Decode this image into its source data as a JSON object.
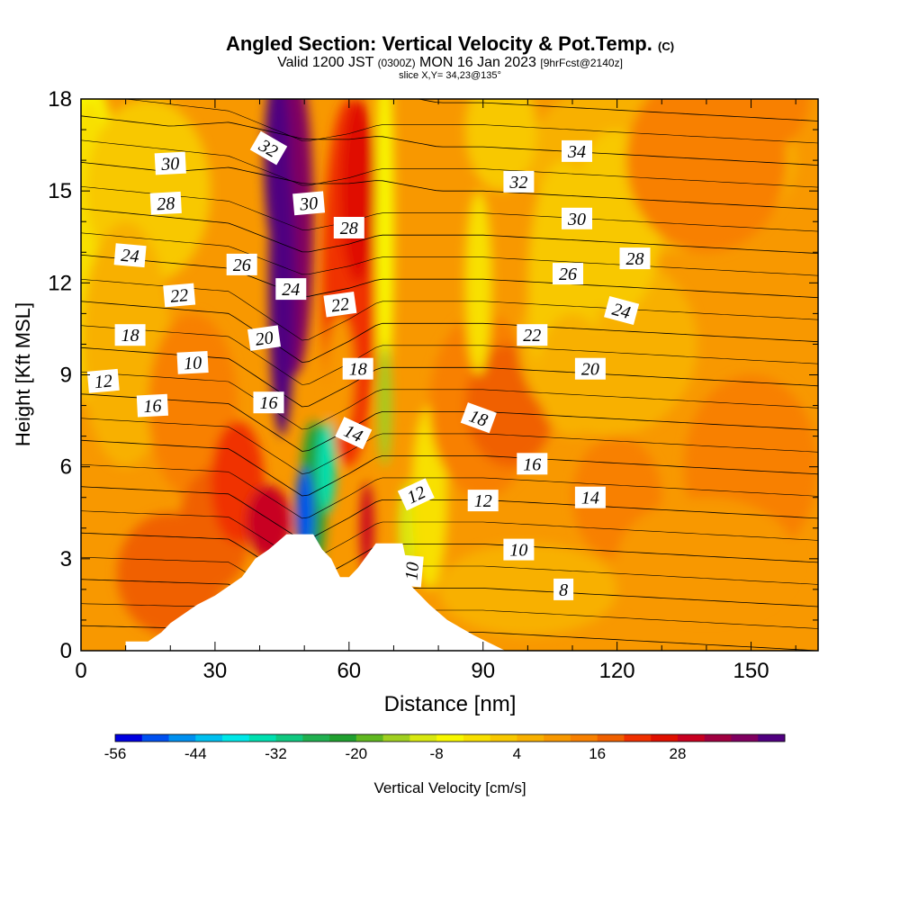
{
  "header": {
    "title": "Angled Section: Vertical Velocity & Pot.Temp.",
    "copyright": "(C)",
    "valid_prefix": "Valid 1200 JST",
    "valid_z": "(0300Z)",
    "valid_date": "MON 16 Jan 2023",
    "fcst": "[9hrFcst@2140z]",
    "slice": "slice X,Y= 34,23@135°"
  },
  "chart_data": {
    "type": "heatmap",
    "xlabel": "Distance [nm]",
    "ylabel": "Height [Kft MSL]",
    "xlim": [
      0,
      165
    ],
    "ylim": [
      0,
      18
    ],
    "x_ticks": [
      0,
      30,
      60,
      90,
      120,
      150
    ],
    "y_ticks": [
      0,
      3,
      6,
      9,
      12,
      15,
      18
    ],
    "colorbar": {
      "label": "Vertical Velocity [cm/s]",
      "tick_labels": [
        "-56",
        "-44",
        "-32",
        "-20",
        "-8",
        "4",
        "16",
        "28"
      ],
      "levels": [
        -60,
        -56,
        -52,
        -48,
        -44,
        -40,
        -36,
        -32,
        -28,
        -24,
        -20,
        -16,
        -12,
        -8,
        -4,
        0,
        4,
        8,
        12,
        16,
        20,
        24,
        28,
        32,
        36
      ],
      "colors": [
        "#0000e0",
        "#0050f0",
        "#0090f0",
        "#00c0f0",
        "#00e8e8",
        "#00e0b0",
        "#10c880",
        "#20b050",
        "#20a030",
        "#60b820",
        "#a0d020",
        "#d8e810",
        "#f8f800",
        "#f8e000",
        "#f8c800",
        "#f8b000",
        "#f89800",
        "#f88000",
        "#f06000",
        "#f03000",
        "#e01000",
        "#c80020",
        "#a00040",
        "#800060",
        "#500080"
      ]
    },
    "contour_labels": [
      "30",
      "28",
      "24",
      "22",
      "18",
      "12",
      "16",
      "10",
      "32",
      "30",
      "26",
      "24",
      "20",
      "16",
      "28",
      "22",
      "18",
      "14",
      "12",
      "10",
      "34",
      "32",
      "30",
      "28",
      "26",
      "24",
      "22",
      "20",
      "18",
      "16",
      "14",
      "12",
      "10",
      "8"
    ],
    "theta_levels": [
      6,
      8,
      10,
      12,
      14,
      16,
      18,
      20,
      22,
      24,
      26,
      28,
      30,
      32,
      34,
      36
    ],
    "terrain_kft": [
      [
        0,
        0
      ],
      [
        10,
        0
      ],
      [
        10,
        0.3
      ],
      [
        15,
        0.3
      ],
      [
        18,
        0.6
      ],
      [
        20,
        0.9
      ],
      [
        23,
        1.2
      ],
      [
        26,
        1.5
      ],
      [
        30,
        1.8
      ],
      [
        33,
        2.1
      ],
      [
        36,
        2.4
      ],
      [
        39,
        3.0
      ],
      [
        42,
        3.3
      ],
      [
        46,
        3.8
      ],
      [
        52,
        3.8
      ],
      [
        54,
        3.3
      ],
      [
        56,
        3.0
      ],
      [
        58,
        2.4
      ],
      [
        60,
        2.4
      ],
      [
        62,
        2.7
      ],
      [
        66,
        3.5
      ],
      [
        72,
        3.5
      ],
      [
        74,
        2.1
      ],
      [
        78,
        1.5
      ],
      [
        82,
        1.0
      ],
      [
        88,
        0.5
      ],
      [
        95,
        0
      ],
      [
        165,
        0
      ]
    ]
  }
}
